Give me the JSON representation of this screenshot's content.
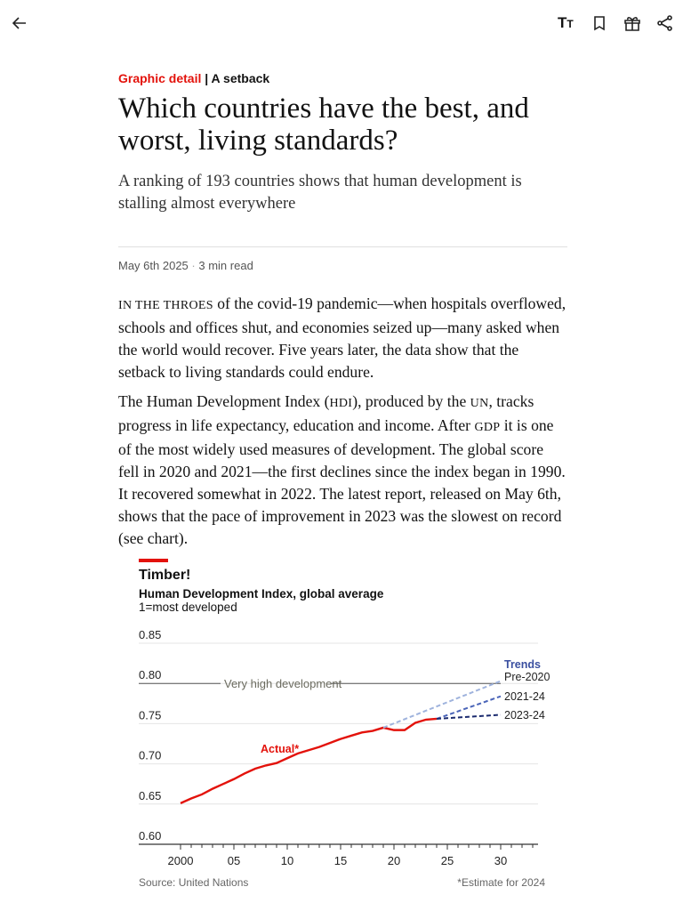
{
  "toolbar": {
    "icons": [
      "back-arrow-icon",
      "text-size-icon",
      "bookmark-icon",
      "gift-icon",
      "share-icon"
    ],
    "text_size_label": "TT"
  },
  "article": {
    "section": "Graphic detail",
    "separator": "|",
    "rubric": "A setback",
    "title": "Which countries have the best, and worst, living standards?",
    "subtitle": "A ranking of 193 countries shows that human development is stalling almost everywhere",
    "date": "May 6th 2025",
    "read_time": "3 min read",
    "p1_lead": "In the throes",
    "p1": " of the covid-19 pandemic—when hospitals overflowed, schools and offices shut, and economies seized up—many asked when the world would recover. Five years later, the data show that the setback to living standards could endure.",
    "p2a": "The Human Development Index (",
    "p2_hdi": "hdi",
    "p2b": "), produced by the ",
    "p2_un": "un",
    "p2c": ", tracks progress in life expectancy, education and income. After ",
    "p2_gdp": "gdp",
    "p2d": " it is one of the most widely used measures of development. The global score fell in 2020 and 2021—the first declines since the index began in 1990. It recovered somewhat in 2022. The latest report, released on May 6th, shows that the pace of improvement in 2023 was the slowest on record (see chart)."
  },
  "chart_data": {
    "type": "line",
    "title": "Timber!",
    "subtitle": "Human Development Index, global average",
    "unit_note": "1=most developed",
    "ylim": [
      0.6,
      0.85
    ],
    "yticks": [
      "0.85",
      "0.80",
      "0.75",
      "0.70",
      "0.65",
      "0.60"
    ],
    "xlim": [
      1998,
      2034
    ],
    "xticks": [
      {
        "v": 2000,
        "label": "2000"
      },
      {
        "v": 2005,
        "label": "05"
      },
      {
        "v": 2010,
        "label": "10"
      },
      {
        "v": 2015,
        "label": "15"
      },
      {
        "v": 2020,
        "label": "20"
      },
      {
        "v": 2025,
        "label": "25"
      },
      {
        "v": 2030,
        "label": "30"
      }
    ],
    "grid": true,
    "reference_line": {
      "y": 0.8,
      "label": "Very high development"
    },
    "trends_label": "Trends",
    "series": [
      {
        "name": "Actual*",
        "color": "#e3120b",
        "x": [
          2000,
          2001,
          2002,
          2003,
          2004,
          2005,
          2006,
          2007,
          2008,
          2009,
          2010,
          2011,
          2012,
          2013,
          2014,
          2015,
          2016,
          2017,
          2018,
          2019,
          2020,
          2021,
          2022,
          2023,
          2024
        ],
        "y": [
          0.651,
          0.657,
          0.662,
          0.669,
          0.675,
          0.681,
          0.688,
          0.694,
          0.698,
          0.701,
          0.707,
          0.713,
          0.717,
          0.721,
          0.726,
          0.731,
          0.735,
          0.739,
          0.741,
          0.745,
          0.742,
          0.742,
          0.751,
          0.755,
          0.756
        ]
      },
      {
        "name": "Pre-2020",
        "color": "#9fb3dd",
        "dashed": true,
        "x": [
          2019,
          2030
        ],
        "y": [
          0.745,
          0.803
        ]
      },
      {
        "name": "2021-24",
        "color": "#4a64b8",
        "dashed": true,
        "x": [
          2024,
          2030
        ],
        "y": [
          0.756,
          0.784
        ]
      },
      {
        "name": "2023-24",
        "color": "#1a2a6e",
        "dashed": true,
        "x": [
          2024,
          2030
        ],
        "y": [
          0.756,
          0.761
        ]
      }
    ],
    "source": "Source: United Nations",
    "footnote": "*Estimate for 2024"
  }
}
